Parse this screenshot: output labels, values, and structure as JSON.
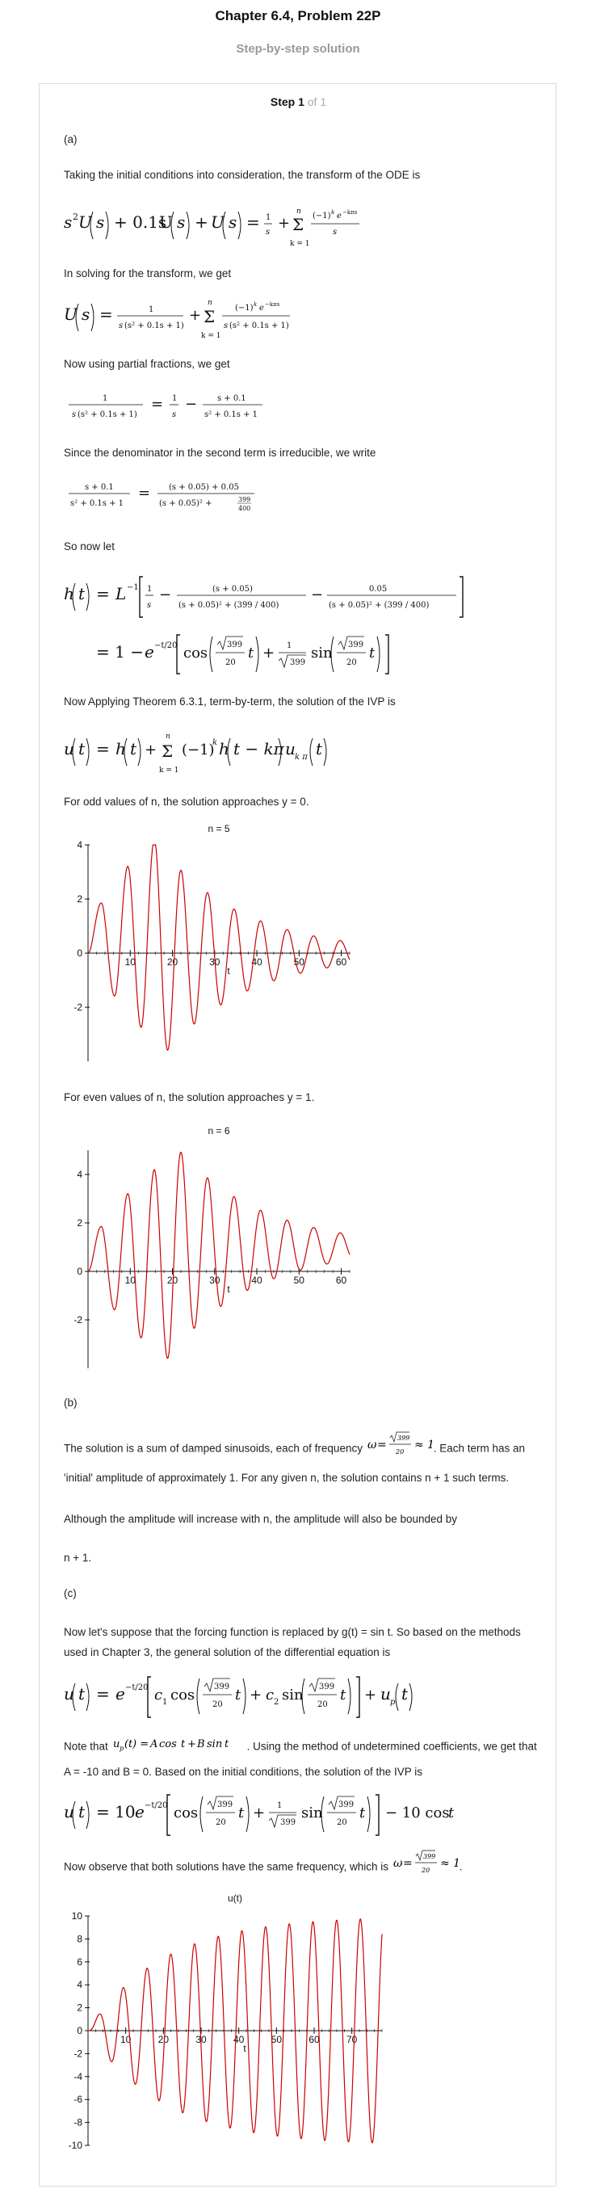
{
  "page": {
    "title": "Chapter 6.4, Problem 22P",
    "subtitle": "Step-by-step solution",
    "step_label": "Step 1",
    "step_of": "of 1"
  },
  "text": {
    "part_a": "(a)",
    "p1": "Taking the initial conditions into consideration, the transform of the ODE is",
    "p2": "In solving for the transform, we get",
    "p3": "Now using partial fractions, we get",
    "p4": "Since the denominator in the second term is irreducible, we write",
    "p5": "So now let",
    "p6": "Now Applying Theorem 6.3.1, term-by-term, the solution of the IVP is",
    "p7": "For odd values of n, the solution approaches y = 0.",
    "p8": "For even values of n, the solution approaches y = 1.",
    "part_b": "(b)",
    "p9a": "The solution is a sum of damped sinusoids, each of frequency",
    "p9b": ". Each term has an 'initial' amplitude of approximately 1. For any given n, the solution contains n + 1 such terms.",
    "p10": "Although the amplitude will increase with n, the amplitude will also be bounded by",
    "p11": "n + 1.",
    "part_c": "(c)",
    "p12": "Now let's suppose that the forcing function is replaced by g(t) = sin t. So based on the methods used in Chapter 3, the general solution of the differential equation is",
    "p13a": "Note that",
    "p13b": ". Using the method of undetermined coefficients, we get that A = -10 and B = 0. Based on the initial conditions, the solution of the IVP is",
    "p14a": "Now observe that both solutions have the same frequency, which is",
    "p14b": "."
  },
  "chart_data": [
    {
      "type": "line",
      "title": "n = 5",
      "xlabel": "t",
      "ylabel": "",
      "xlim": [
        0,
        62
      ],
      "ylim": [
        -4,
        4
      ],
      "xticks": [
        10,
        20,
        30,
        40,
        50,
        60
      ],
      "yticks": [
        -2,
        0,
        2,
        4
      ],
      "series": [
        {
          "color": "#cc0000",
          "n": 5,
          "limit": 0
        }
      ]
    },
    {
      "type": "line",
      "title": "n = 6",
      "xlabel": "t",
      "ylabel": "",
      "xlim": [
        0,
        62
      ],
      "ylim": [
        -4,
        5
      ],
      "xticks": [
        10,
        20,
        30,
        40,
        50,
        60
      ],
      "yticks": [
        -2,
        0,
        2,
        4
      ],
      "series": [
        {
          "color": "#cc0000",
          "n": 6,
          "limit": 1
        }
      ]
    },
    {
      "type": "line",
      "title": "u(t)",
      "xlabel": "t",
      "ylabel": "",
      "xlim": [
        0,
        78
      ],
      "ylim": [
        -10,
        10
      ],
      "xticks": [
        10,
        20,
        30,
        40,
        50,
        60,
        70
      ],
      "yticks": [
        -10,
        -8,
        -6,
        -4,
        -2,
        0,
        2,
        4,
        6,
        8,
        10
      ],
      "series": [
        {
          "color": "#cc0000",
          "amplitude": 10
        }
      ]
    }
  ]
}
